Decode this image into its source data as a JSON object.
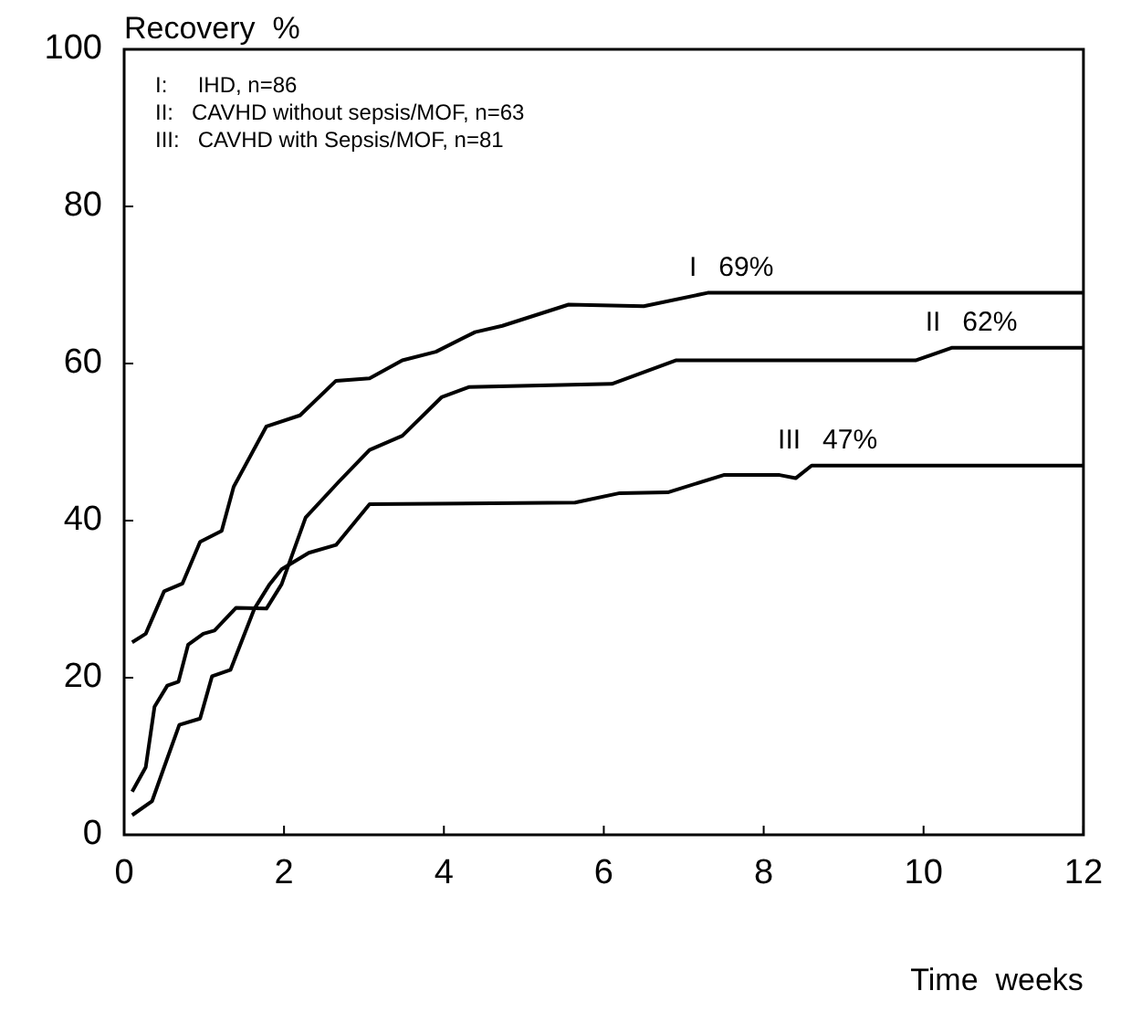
{
  "chart_data": {
    "type": "line",
    "ylabel": "Recovery  %",
    "xlabel": "Time  weeks",
    "xlim": [
      0,
      12
    ],
    "xticks": [
      0,
      2,
      4,
      6,
      8,
      10,
      12
    ],
    "ylim": [
      0,
      100
    ],
    "yticks": [
      0,
      20,
      40,
      60,
      80,
      100
    ],
    "annotations": [
      "I:     IHD, n=86",
      "II:   CAVHD without sepsis/MOF, n=63",
      "III:   CAVHD with Sepsis/MOF, n=81"
    ],
    "series": [
      {
        "name": "I",
        "color": "#000000",
        "x": [
          0.1,
          0.27,
          0.5,
          0.73,
          0.95,
          1.22,
          1.37,
          1.78,
          2.2,
          2.65,
          3.07,
          3.48,
          3.9,
          4.39,
          4.73,
          5.56,
          6.5,
          7.3,
          12
        ],
        "values": [
          24.5,
          25.6,
          31,
          32,
          37.3,
          38.7,
          44.3,
          52,
          53.4,
          57.8,
          58.1,
          60.4,
          61.5,
          64,
          64.8,
          67.5,
          67.3,
          69,
          69
        ],
        "value_labels": [
          null,
          null,
          null,
          null,
          null,
          null,
          null,
          null,
          null,
          null,
          null,
          null,
          null,
          null,
          null,
          null,
          null,
          "69%",
          null
        ]
      },
      {
        "name": "II",
        "color": "#000000",
        "x": [
          0.1,
          0.27,
          0.38,
          0.54,
          0.68,
          0.8,
          0.99,
          1.13,
          1.4,
          1.78,
          1.97,
          2.27,
          2.69,
          3.07,
          3.48,
          3.97,
          4.31,
          6.1,
          6.9,
          9.9,
          10.35,
          12
        ],
        "values": [
          5.5,
          8.6,
          16.3,
          19,
          19.5,
          24.2,
          25.6,
          26,
          28.9,
          28.8,
          31.9,
          40.4,
          45,
          49,
          50.8,
          55.7,
          57,
          57.4,
          60.4,
          60.4,
          62,
          62
        ],
        "value_labels": [
          null,
          null,
          null,
          null,
          null,
          null,
          null,
          null,
          null,
          null,
          null,
          null,
          null,
          null,
          null,
          null,
          null,
          null,
          null,
          null,
          "62%",
          null
        ]
      },
      {
        "name": "III",
        "color": "#000000",
        "x": [
          0.1,
          0.35,
          0.5,
          0.69,
          0.95,
          1.1,
          1.33,
          1.63,
          1.82,
          1.97,
          2.31,
          2.65,
          3.07,
          5.64,
          6.2,
          6.8,
          7.5,
          8.2,
          8.4,
          8.6,
          12
        ],
        "values": [
          2.5,
          4.3,
          8.6,
          14,
          14.8,
          20.2,
          21,
          28.8,
          31.9,
          33.8,
          35.9,
          36.9,
          42.1,
          42.3,
          43.5,
          43.6,
          45.8,
          45.8,
          45.4,
          47,
          47
        ],
        "value_labels": [
          null,
          null,
          null,
          null,
          null,
          null,
          null,
          null,
          null,
          null,
          null,
          null,
          null,
          null,
          null,
          null,
          null,
          null,
          null,
          "47%",
          null
        ]
      }
    ]
  }
}
